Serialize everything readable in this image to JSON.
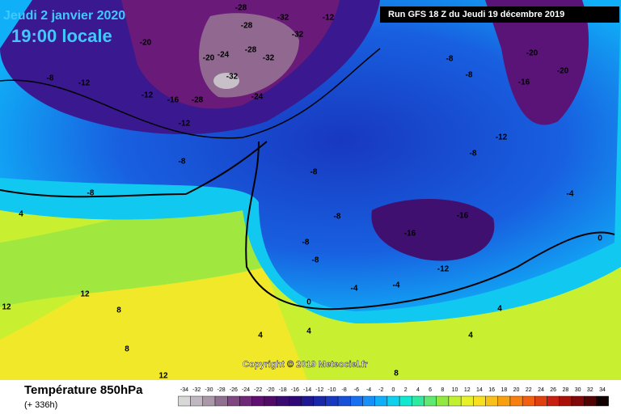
{
  "header": {
    "date": "Jeudi 2 janvier 2020",
    "time": "19:00 locale",
    "run": "Run GFS 18 Z du Jeudi 19 décembre 2019"
  },
  "copyright": "Copyright © 2019 Meteociel.fr",
  "footer": {
    "title": "Température 850hPa",
    "lead": "(+ 336h)"
  },
  "scale": {
    "levels": [
      -34,
      -32,
      -30,
      -28,
      -26,
      -24,
      -22,
      -20,
      -18,
      -16,
      -14,
      -12,
      -10,
      -8,
      -6,
      -4,
      -2,
      0,
      2,
      4,
      6,
      8,
      10,
      12,
      14,
      16,
      18,
      20,
      22,
      24,
      26,
      28,
      30,
      32,
      34
    ],
    "colors": [
      "#d8d8d8",
      "#c0b8c0",
      "#a898a8",
      "#907090",
      "#804880",
      "#702878",
      "#601070",
      "#500a68",
      "#3a0a70",
      "#300878",
      "#201890",
      "#1828a8",
      "#1838c0",
      "#1850d8",
      "#1870f0",
      "#1890f8",
      "#10b0f8",
      "#10d0f0",
      "#10e8d0",
      "#30e8a0",
      "#60e870",
      "#90e840",
      "#c0f030",
      "#e8f028",
      "#f8e020",
      "#f8c018",
      "#f8a010",
      "#f88010",
      "#f06010",
      "#e04010",
      "#c82010",
      "#a81008",
      "#800808",
      "#500404",
      "#100000"
    ]
  },
  "contour_labels": [
    "-28",
    "-32",
    "-12",
    "-28",
    "-32",
    "-20",
    "-28",
    "-32",
    "-20",
    "-24",
    "-32",
    "-24",
    "-28",
    "-16",
    "-12",
    "-12",
    "-12",
    "-8",
    "-8",
    "-8",
    "4",
    "12",
    "12",
    "12",
    "8",
    "8",
    "-8",
    "-8",
    "-8",
    "-8",
    "-16",
    "-16",
    "-12",
    "-8",
    "-12",
    "-8",
    "-8",
    "-16",
    "-20",
    "-20",
    "0",
    "-4",
    "-4",
    "4",
    "4",
    "4",
    "4",
    "8",
    "0",
    "-4"
  ]
}
